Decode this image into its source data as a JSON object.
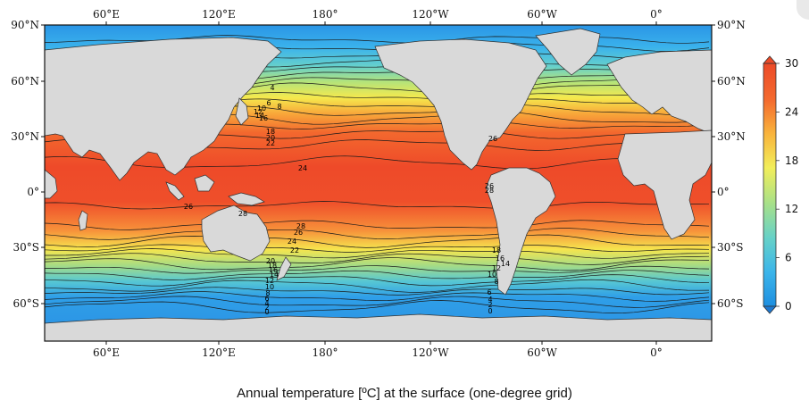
{
  "caption": "Annual temperature [ºC] at the surface (one-degree grid)",
  "map": {
    "lon_ticks": [
      "60°E",
      "120°E",
      "180°",
      "120°W",
      "60°W",
      "0°"
    ],
    "lat_ticks": [
      "90°N",
      "60°N",
      "30°N",
      "0°",
      "30°S",
      "60°S"
    ],
    "land_color": "#d9d9d9",
    "contour_color": "#1a1a1a"
  },
  "colorbar": {
    "ticks": [
      "30",
      "24",
      "18",
      "12",
      "6",
      "0"
    ],
    "min": 0,
    "max": 30,
    "colors": [
      "#1e8fe0",
      "#3bb5ea",
      "#66d1c8",
      "#a6e08a",
      "#f2ee5a",
      "#f9b43c",
      "#f46a2e",
      "#ec4a28"
    ]
  },
  "contour_labels": [
    "4",
    "6",
    "8",
    "10",
    "12",
    "14",
    "16",
    "18",
    "20",
    "22",
    "24",
    "26",
    "28",
    "26",
    "28",
    "26",
    "24",
    "22",
    "20",
    "18",
    "16",
    "14",
    "12",
    "10",
    "8",
    "6",
    "4",
    "2",
    "0",
    "18",
    "16",
    "14",
    "12",
    "10",
    "8",
    "6",
    "4",
    "2",
    "0",
    "26",
    "28"
  ]
}
